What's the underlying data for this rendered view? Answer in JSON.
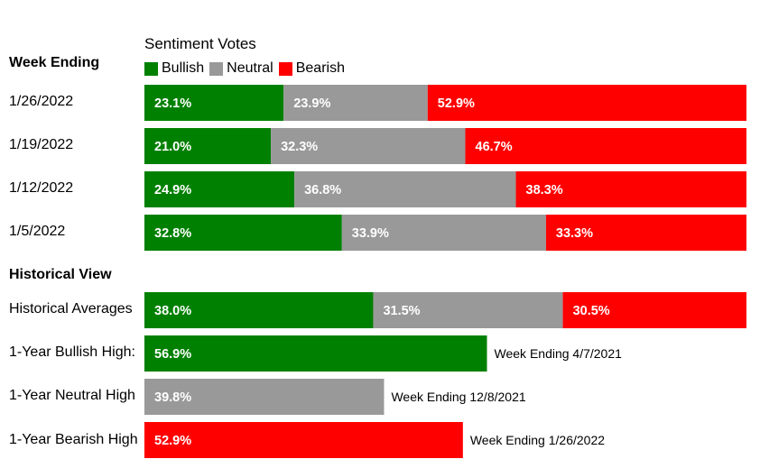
{
  "chart_data": {
    "type": "bar",
    "subtype": "stacked-horizontal-percent",
    "title": "Sentiment Votes",
    "colors": {
      "Bullish": "#008000",
      "Neutral": "#999999",
      "Bearish": "#ff0000"
    },
    "legend": [
      "Bullish",
      "Neutral",
      "Bearish"
    ],
    "sections": {
      "weekly_heading": "Week Ending",
      "historical_heading": "Historical View"
    },
    "weekly": [
      {
        "label": "1/26/2022",
        "values": [
          23.1,
          23.9,
          52.9
        ],
        "value_labels": [
          "23.1%",
          "23.9%",
          "52.9%"
        ]
      },
      {
        "label": "1/19/2022",
        "values": [
          21.0,
          32.3,
          46.7
        ],
        "value_labels": [
          "21.0%",
          "32.3%",
          "46.7%"
        ]
      },
      {
        "label": "1/12/2022",
        "values": [
          24.9,
          36.8,
          38.3
        ],
        "value_labels": [
          "24.9%",
          "36.8%",
          "38.3%"
        ]
      },
      {
        "label": "1/5/2022",
        "values": [
          32.8,
          33.9,
          33.3
        ],
        "value_labels": [
          "32.8%",
          "33.9%",
          "33.3%"
        ]
      }
    ],
    "historical_averages": {
      "label": "Historical Averages",
      "values": [
        38.0,
        31.5,
        30.5
      ],
      "value_labels": [
        "38.0%",
        "31.5%",
        "30.5%"
      ]
    },
    "highs": [
      {
        "label": "1-Year Bullish High:",
        "series": "Bullish",
        "value": 56.9,
        "value_label": "56.9%",
        "note": "Week Ending 4/7/2021"
      },
      {
        "label": "1-Year Neutral High",
        "series": "Neutral",
        "value": 39.8,
        "value_label": "39.8%",
        "note": "Week Ending 12/8/2021"
      },
      {
        "label": "1-Year Bearish High",
        "series": "Bearish",
        "value": 52.9,
        "value_label": "52.9%",
        "note": "Week Ending 1/26/2022"
      }
    ],
    "xlim": [
      0,
      100
    ]
  }
}
